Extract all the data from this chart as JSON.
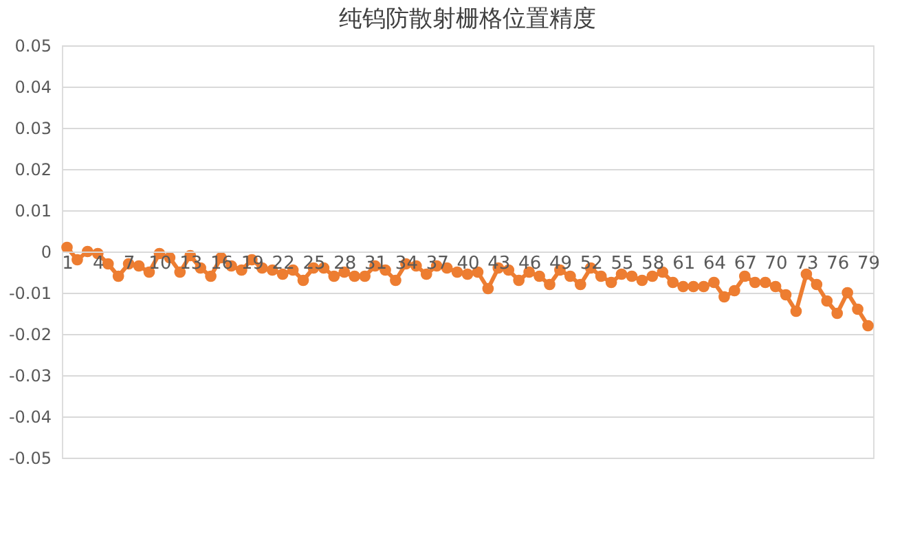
{
  "chart_data": {
    "type": "line",
    "title": "纯钨防散射栅格位置精度",
    "categories": [
      "1",
      null,
      null,
      "4",
      null,
      null,
      "7",
      null,
      null,
      "10",
      null,
      null,
      "13",
      null,
      null,
      "16",
      null,
      null,
      "19",
      null,
      null,
      "22",
      null,
      null,
      "25",
      null,
      null,
      "28",
      null,
      null,
      "31",
      null,
      null,
      "34",
      null,
      null,
      "37",
      null,
      null,
      "40",
      null,
      null,
      "43",
      null,
      null,
      "46",
      null,
      null,
      "49",
      null,
      null,
      "52",
      null,
      null,
      "55",
      null,
      null,
      "58",
      null,
      null,
      "61",
      null,
      null,
      "64",
      null,
      null,
      "67",
      null,
      null,
      "70",
      null,
      null,
      "73",
      null,
      null,
      "76",
      null,
      null,
      "79"
    ],
    "series": [
      {
        "color": "#ed7d31",
        "values": [
          0.001,
          -0.002,
          0,
          -0.0005,
          -0.003,
          -0.006,
          -0.003,
          -0.0035,
          -0.005,
          -0.0005,
          -0.0015,
          -0.005,
          -0.001,
          -0.004,
          -0.006,
          -0.0015,
          -0.0035,
          -0.0045,
          -0.002,
          -0.004,
          -0.0045,
          -0.0055,
          -0.0045,
          -0.007,
          -0.004,
          -0.004,
          -0.006,
          -0.005,
          -0.006,
          -0.006,
          -0.0035,
          -0.0045,
          -0.007,
          -0.003,
          -0.0035,
          -0.0055,
          -0.0035,
          -0.004,
          -0.005,
          -0.0055,
          -0.005,
          -0.009,
          -0.004,
          -0.0045,
          -0.007,
          -0.005,
          -0.006,
          -0.008,
          -0.0045,
          -0.006,
          -0.008,
          -0.004,
          -0.006,
          -0.0075,
          -0.0055,
          -0.006,
          -0.007,
          -0.006,
          -0.005,
          -0.0075,
          -0.0085,
          -0.0085,
          -0.0085,
          -0.0075,
          -0.011,
          -0.0095,
          -0.006,
          -0.0075,
          -0.0075,
          -0.0085,
          -0.0105,
          -0.0145,
          -0.0055,
          -0.008,
          -0.012,
          -0.015,
          -0.01,
          -0.014,
          -0.018
        ]
      }
    ],
    "ylim": [
      -0.05,
      0.05
    ],
    "yticks": [
      -0.05,
      -0.04,
      -0.03,
      -0.02,
      -0.01,
      0,
      0.01,
      0.02,
      0.03,
      0.04,
      0.05
    ],
    "grid": "y",
    "marker": "circle",
    "line_style": "solid"
  }
}
